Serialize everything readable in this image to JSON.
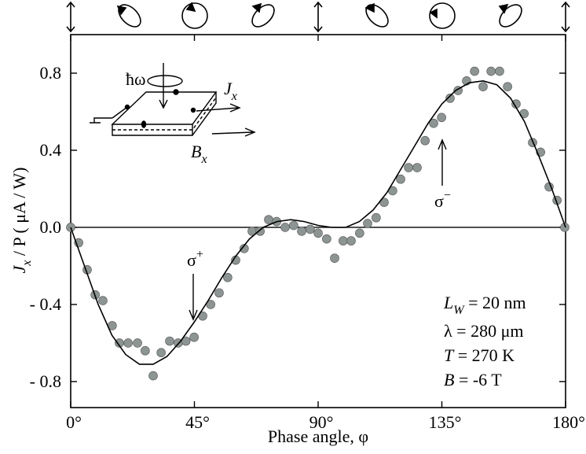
{
  "chart_data": {
    "type": "scatter",
    "x_label": "Phase angle, φ",
    "y_label": [
      "J",
      "x",
      " / P  ( μA / W)"
    ],
    "xlim": [
      0,
      180
    ],
    "ylim": [
      -0.935,
      1.0
    ],
    "xticks": [
      {
        "value": 0,
        "label": "0°"
      },
      {
        "value": 45,
        "label": "45°"
      },
      {
        "value": 90,
        "label": "90°"
      },
      {
        "value": 135,
        "label": "135°"
      },
      {
        "value": 180,
        "label": "180°"
      }
    ],
    "yticks": [
      {
        "value": -0.8,
        "label": "- 0.8"
      },
      {
        "value": -0.4,
        "label": "- 0.4"
      },
      {
        "value": 0,
        "label": "0.0"
      },
      0.4,
      0.8
    ],
    "series": [
      {
        "type": "scatter",
        "color": "#8c9593",
        "x": [
          0,
          2.9,
          6,
          8.9,
          11.7,
          15.1,
          17.7,
          20.9,
          24.3,
          27.1,
          30,
          32.9,
          36,
          39.1,
          41.9,
          44.9,
          48,
          50.9,
          54,
          57.1,
          60,
          63.1,
          66,
          68.9,
          72,
          74.9,
          78,
          81.1,
          84,
          87.1,
          90,
          93.1,
          96,
          99.1,
          102,
          105.1,
          108,
          111.1,
          114,
          117.1,
          120,
          122.9,
          126,
          128.9,
          132,
          134.9,
          138,
          140.9,
          144,
          146.9,
          150,
          152.9,
          156,
          158.9,
          162,
          164.9,
          168,
          170.9,
          174,
          176.9,
          179.7
        ],
        "values": [
          0,
          -0.08,
          -0.22,
          -0.35,
          -0.38,
          -0.51,
          -0.6,
          -0.6,
          -0.6,
          -0.64,
          -0.77,
          -0.65,
          -0.59,
          -0.6,
          -0.59,
          -0.57,
          -0.46,
          -0.4,
          -0.34,
          -0.26,
          -0.17,
          -0.11,
          -0.02,
          -0.02,
          0.04,
          0.03,
          0,
          0.01,
          -0.02,
          -0.01,
          -0.03,
          -0.06,
          -0.16,
          -0.07,
          -0.07,
          -0.03,
          0.02,
          0.05,
          0.13,
          0.19,
          0.25,
          0.31,
          0.31,
          0.45,
          0.54,
          0.57,
          0.67,
          0.71,
          0.76,
          0.81,
          0.73,
          0.81,
          0.81,
          0.73,
          0.64,
          0.59,
          0.44,
          0.39,
          0.21,
          0.14,
          0
        ]
      },
      {
        "type": "line",
        "color": "#000000",
        "x": [
          0,
          5,
          10,
          15,
          20,
          25,
          30,
          35,
          40,
          45,
          50,
          55,
          60,
          65,
          70,
          75,
          80,
          85,
          90,
          95,
          100,
          105,
          110,
          115,
          120,
          125,
          130,
          135,
          140,
          145,
          150,
          155,
          160,
          165,
          170,
          175,
          180
        ],
        "values": [
          0,
          -0.2,
          -0.4,
          -0.56,
          -0.66,
          -0.71,
          -0.71,
          -0.67,
          -0.59,
          -0.49,
          -0.38,
          -0.26,
          -0.15,
          -0.06,
          0,
          0.03,
          0.04,
          0.03,
          0.01,
          0,
          0,
          0.03,
          0.09,
          0.18,
          0.3,
          0.42,
          0.54,
          0.64,
          0.71,
          0.75,
          0.76,
          0.74,
          0.67,
          0.55,
          0.38,
          0.2,
          0
        ]
      }
    ],
    "annotations": [
      {
        "text": "σ",
        "sup": "+"
      },
      {
        "text": "σ",
        "sup": "−"
      }
    ],
    "notes": [
      [
        "L",
        "W",
        " = 20 nm"
      ],
      [
        "λ = 280 μm"
      ],
      [
        "T",
        " = 270 K"
      ],
      [
        "B",
        " = -6 T"
      ]
    ],
    "inset_labels": {
      "photon": "ħω",
      "current": [
        "J",
        "x"
      ],
      "field": [
        "B",
        "x"
      ]
    }
  }
}
